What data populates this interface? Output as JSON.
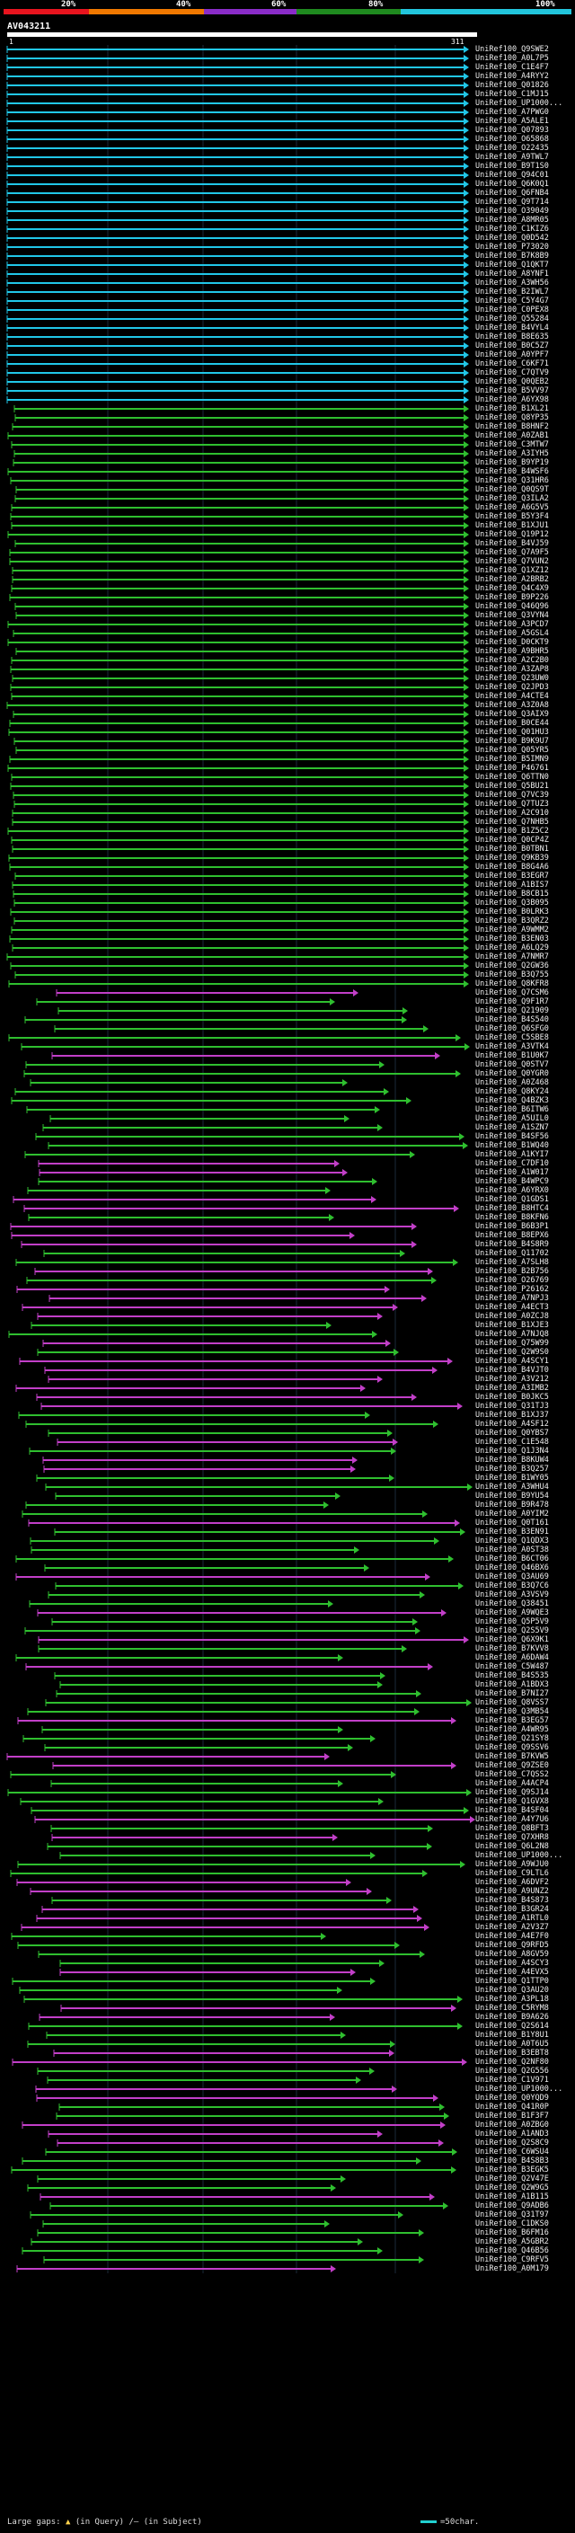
{
  "scale": {
    "labels": [
      "20%",
      "40%",
      "60%",
      "80%",
      "100%"
    ],
    "colors": [
      "#e8141e",
      "#f07800",
      "#8a2cc8",
      "#1f8a1f",
      "#22c5dc"
    ]
  },
  "query": {
    "title": "AV043211",
    "start": "1",
    "end": "311"
  },
  "colors": {
    "cyan": "#21c7e8",
    "green": "#2fbf2f",
    "magenta": "#c23fc8"
  },
  "hits": [
    "UniRef100_Q9SWE2",
    "UniRef100_A0L7P5",
    "UniRef100_C1E4F7",
    "UniRef100_A4RYY2",
    "UniRef100_Q01826",
    "UniRef100_C1MJ15",
    "UniRef100_UP1000...",
    "UniRef100_A7PWG0",
    "UniRef100_A5ALE1",
    "UniRef100_Q07893",
    "UniRef100_O65868",
    "UniRef100_O22435",
    "UniRef100_A9TWL7",
    "UniRef100_B9T1S0",
    "UniRef100_Q94C01",
    "UniRef100_Q6K0Q1",
    "UniRef100_Q6FNB4",
    "UniRef100_Q9T714",
    "UniRef100_O39049",
    "UniRef100_A8MR05",
    "UniRef100_C1KIZ6",
    "UniRef100_Q0D542",
    "UniRef100_P73020",
    "UniRef100_B7K8B9",
    "UniRef100_Q1QKT7",
    "UniRef100_A8YNF1",
    "UniRef100_A3WH56",
    "UniRef100_B2IWL7",
    "UniRef100_C5Y4G7",
    "UniRef100_C0PEX8",
    "UniRef100_Q55284",
    "UniRef100_B4VYL4",
    "UniRef100_B8E635",
    "UniRef100_B0C5Z7",
    "UniRef100_A0YPF7",
    "UniRef100_C6KF71",
    "UniRef100_C7QTV9",
    "UniRef100_Q0QEB2",
    "UniRef100_B5VV97",
    "UniRef100_A6YX98",
    "UniRef100_B1XL21",
    "UniRef100_Q8YP35",
    "UniRef100_B8HNF2",
    "UniRef100_A0ZAB1",
    "UniRef100_C3MTW7",
    "UniRef100_A3IYH5",
    "UniRef100_B9YP19",
    "UniRef100_B4WSF6",
    "UniRef100_Q31HR6",
    "UniRef100_Q0QS9T",
    "UniRef100_Q3ILA2",
    "UniRef100_A6G5V5",
    "UniRef100_B5Y3F4",
    "UniRef100_B1XJU1",
    "UniRef100_Q19P12",
    "UniRef100_B4VJ59",
    "UniRef100_Q7A9F5",
    "UniRef100_Q7VUN2",
    "UniRef100_Q1XZ12",
    "UniRef100_A2BRB2",
    "UniRef100_Q4C4X9",
    "UniRef100_B9P226",
    "UniRef100_Q46Q96",
    "UniRef100_Q3VYN4",
    "UniRef100_A3PCD7",
    "UniRef100_A5GSL4",
    "UniRef100_D0CKT9",
    "UniRef100_A9BHR5",
    "UniRef100_A2C2B0",
    "UniRef100_A3ZAP8",
    "UniRef100_Q23UW0",
    "UniRef100_Q2JPD3",
    "UniRef100_A4CTE4",
    "UniRef100_A3Z0A8",
    "UniRef100_Q3AIX9",
    "UniRef100_B0CE44",
    "UniRef100_Q01HU3",
    "UniRef100_B9K9U7",
    "UniRef100_Q05YR5",
    "UniRef100_B5IMN9",
    "UniRef100_P46761",
    "UniRef100_Q6TTN0",
    "UniRef100_Q5BU21",
    "UniRef100_Q7VC39",
    "UniRef100_Q7TUZ3",
    "UniRef100_A2C910",
    "UniRef100_Q7NHB5",
    "UniRef100_B1Z5C2",
    "UniRef100_Q0CP4Z",
    "UniRef100_B0TBN1",
    "UniRef100_Q9KB39",
    "UniRef100_B8G4A6",
    "UniRef100_B3EGR7",
    "UniRef100_A1BIS7",
    "UniRef100_B8CB15",
    "UniRef100_Q3B095",
    "UniRef100_B0LRK3",
    "UniRef100_B3QRZ2",
    "UniRef100_A9WMM2",
    "UniRef100_B3EN03",
    "UniRef100_A6LQ29",
    "UniRef100_A7NMR7",
    "UniRef100_Q2GW36",
    "UniRef100_B3Q755",
    "UniRef100_Q8KFR8",
    "UniRef100_Q7CSM6",
    "UniRef100_Q9F1R7",
    "UniRef100_Q21909",
    "UniRef100_B4S540",
    "UniRef100_Q6SFG0",
    "UniRef100_C5SBE8",
    "UniRef100_A3VTK4",
    "UniRef100_B1U0K7",
    "UniRef100_Q0STV7",
    "UniRef100_Q0YGR0",
    "UniRef100_A0Z468",
    "UniRef100_Q8KY24",
    "UniRef100_Q4BZK3",
    "UniRef100_B6ITW6",
    "UniRef100_A5UIL0",
    "UniRef100_A1SZN7",
    "UniRef100_B4SF56",
    "UniRef100_B1WQ40",
    "UniRef100_A1KYI7",
    "UniRef100_C7DF10",
    "UniRef100_A1W017",
    "UniRef100_B4WPC9",
    "UniRef100_A6YRX0",
    "UniRef100_Q1GDS1",
    "UniRef100_B8HTC4",
    "UniRef100_B8KFN6",
    "UniRef100_B6B3P1",
    "UniRef100_B8EPX6",
    "UniRef100_B4S8R9",
    "UniRef100_Q11702",
    "UniRef100_A7SLH8",
    "UniRef100_B2B756",
    "UniRef100_O26769",
    "UniRef100_P26162",
    "UniRef100_A7NPJ3",
    "UniRef100_A4ECT3",
    "UniRef100_A0ZCJ8",
    "UniRef100_B1XJE3",
    "UniRef100_A7NJQ8",
    "UniRef100_Q75W99",
    "UniRef100_Q2W9S0",
    "UniRef100_A4SCY1",
    "UniRef100_B4VJT0",
    "UniRef100_A3V212",
    "UniRef100_A3IMB2",
    "UniRef100_B0JKC5",
    "UniRef100_Q31TJ3",
    "UniRef100_B1XJ37",
    "UniRef100_A4SF12",
    "UniRef100_Q0YBS7",
    "UniRef100_C1E548",
    "UniRef100_Q1J3N4",
    "UniRef100_B8KUW4",
    "UniRef100_B3Q257",
    "UniRef100_B1WY05",
    "UniRef100_A3WHU4",
    "UniRef100_B9YU54",
    "UniRef100_B9R478",
    "UniRef100_A0YIM2",
    "UniRef100_Q0T161",
    "UniRef100_B3EN91",
    "UniRef100_Q1QDX3",
    "UniRef100_A0ST38",
    "UniRef100_B6CT06",
    "UniRef100_Q46BX6",
    "UniRef100_Q3AU69",
    "UniRef100_B3Q7C6",
    "UniRef100_A3VSV9",
    "UniRef100_Q38451",
    "UniRef100_A9WQE3",
    "UniRef100_Q5P5V9",
    "UniRef100_Q2S5V9",
    "UniRef100_Q6X9K1",
    "UniRef100_B7KVV8",
    "UniRef100_A6DAW4",
    "UniRef100_C5W487",
    "UniRef100_B4S535",
    "UniRef100_A1BDX3",
    "UniRef100_B7NI27",
    "UniRef100_Q8VSS7",
    "UniRef100_Q3MB54",
    "UniRef100_B3EG57",
    "UniRef100_A4WR95",
    "UniRef100_Q21SY8",
    "UniRef100_Q9SSV6",
    "UniRef100_B7KVW5",
    "UniRef100_Q9ZSE0",
    "UniRef100_C7QSS2",
    "UniRef100_A4ACP4",
    "UniRef100_Q9SJ14",
    "UniRef100_Q1GVX8",
    "UniRef100_B4SF04",
    "UniRef100_A4Y7U6",
    "UniRef100_Q8BFT3",
    "UniRef100_Q7XHR8",
    "UniRef100_Q6L2N8",
    "UniRef100_UP1000...",
    "UniRef100_A9WJU0",
    "UniRef100_C9LTL6",
    "UniRef100_A6DVF2",
    "UniRef100_A9UNZ2",
    "UniRef100_B4S873",
    "UniRef100_B3GR24",
    "UniRef100_A1RTL0",
    "UniRef100_A2V3Z7",
    "UniRef100_A4E7F0",
    "UniRef100_Q9RFD5",
    "UniRef100_A8GV59",
    "UniRef100_A4SCY3",
    "UniRef100_A4EVX5",
    "UniRef100_Q1TTP0",
    "UniRef100_Q3AU20",
    "UniRef100_A3PL18",
    "UniRef100_C5RYM8",
    "UniRef100_B9A626",
    "UniRef100_Q2S614",
    "UniRef100_B1Y8U1",
    "UniRef100_A0T6U5",
    "UniRef100_B3EBT8",
    "UniRef100_Q2NF80",
    "UniRef100_Q2G556",
    "UniRef100_C1V971",
    "UniRef100_UP1000...",
    "UniRef100_Q0YQD9",
    "UniRef100_Q41R0P",
    "UniRef100_B1F3F7",
    "UniRef100_A0ZBG0",
    "UniRef100_A1AND3",
    "UniRef100_Q2S8C9",
    "UniRef100_C6WSU4",
    "UniRef100_B4S8B3",
    "UniRef100_B3EGK5",
    "UniRef100_Q2V47E",
    "UniRef100_Q2W9G5",
    "UniRef100_A1B115",
    "UniRef100_Q9ADB6",
    "UniRef100_Q31T97",
    "UniRef100_C1DKS0",
    "UniRef100_B6FM16",
    "UniRef100_A5GBR2",
    "UniRef100_Q46B56",
    "UniRef100_C9RFV5",
    "UniRef100_A0M179"
  ],
  "footer": {
    "large_gaps_label": "Large gaps:",
    "query_gap_text": "(in Query)",
    "subject_gap_text": "/– (in Subject)",
    "legend_text": "=50char."
  }
}
